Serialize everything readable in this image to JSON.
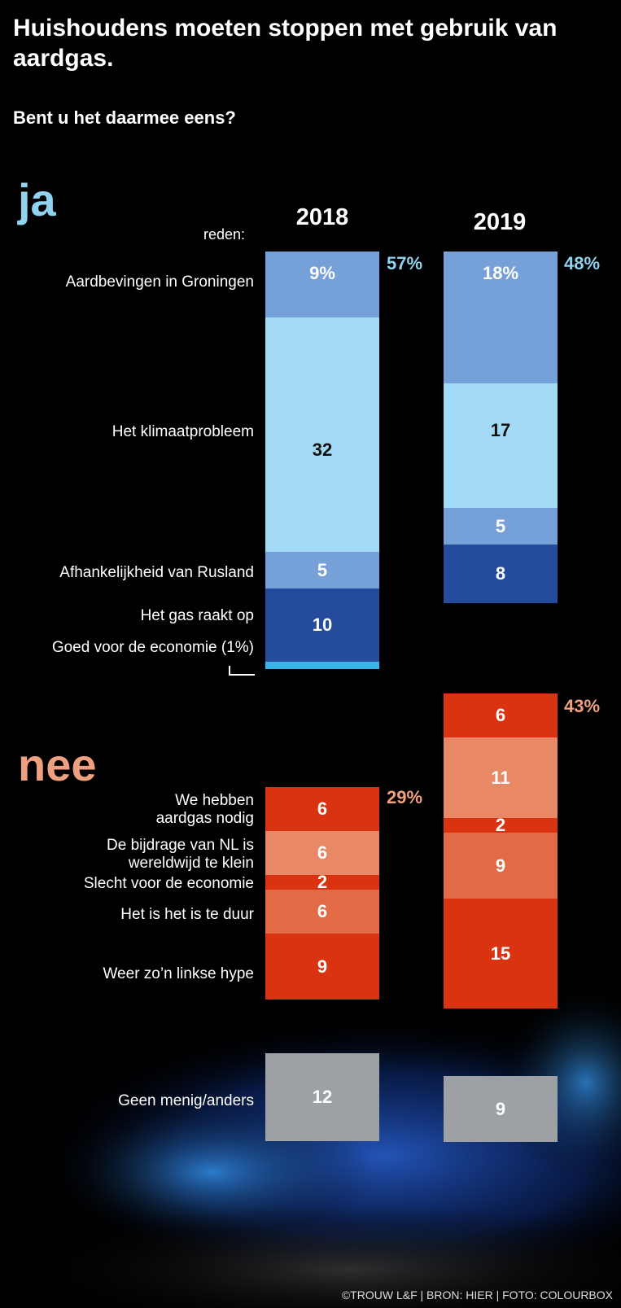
{
  "header": {
    "title": "Huishoudens moeten stoppen met gebruik van aardgas.",
    "subtitle": "Bent u het daarmee eens?"
  },
  "labels": {
    "ja": "ja",
    "nee": "nee",
    "reden": "reden:"
  },
  "credit": "©TROUW L&F | BRON: HIER | FOTO: COLOURBOX",
  "chart_data": {
    "type": "bar",
    "stacked": true,
    "categories": [
      "2018",
      "2019"
    ],
    "ja_totals": [
      "57%",
      "48%"
    ],
    "nee_totals": [
      "29%",
      "43%"
    ],
    "series": [
      {
        "name": "Aardbevingen in Groningen",
        "group": "ja",
        "values": [
          9,
          18
        ],
        "labels": [
          "9%",
          "18%"
        ],
        "color": "#76a1d8"
      },
      {
        "name": "Het klimaatprobleem",
        "group": "ja",
        "values": [
          32,
          17
        ],
        "labels": [
          "32",
          "17"
        ],
        "color": "#a2daf5"
      },
      {
        "name": "Afhankelijkheid van Rusland",
        "group": "ja",
        "values": [
          5,
          5
        ],
        "labels": [
          "5",
          "5"
        ],
        "color": "#76a1d8"
      },
      {
        "name": "Het gas raakt op",
        "group": "ja",
        "values": [
          10,
          8
        ],
        "labels": [
          "10",
          "8"
        ],
        "color": "#254b9c"
      },
      {
        "name": "Goed voor de economie (1%)",
        "group": "ja",
        "values": [
          1,
          0
        ],
        "labels": [
          "",
          ""
        ],
        "color": "#3ab4e6"
      },
      {
        "name": "We hebben aardgas nodig",
        "group": "nee",
        "values": [
          6,
          6
        ],
        "labels": [
          "6",
          "6"
        ],
        "color": "#d93312"
      },
      {
        "name": "De bijdrage van NL is wereldwijd te klein",
        "group": "nee",
        "values": [
          6,
          11
        ],
        "labels": [
          "6",
          "11"
        ],
        "color": "#e88865"
      },
      {
        "name": "Slecht voor de economie",
        "group": "nee",
        "values": [
          2,
          2
        ],
        "labels": [
          "2",
          "2"
        ],
        "color": "#d93312"
      },
      {
        "name": "Het is het is te duur",
        "group": "nee",
        "values": [
          6,
          9
        ],
        "labels": [
          "6",
          "9"
        ],
        "color": "#e26a45"
      },
      {
        "name": "Weer zo’n linkse hype",
        "group": "nee",
        "values": [
          9,
          15
        ],
        "labels": [
          "9",
          "15"
        ],
        "color": "#d93312"
      },
      {
        "name": "Geen menig/anders",
        "group": "other",
        "values": [
          12,
          9
        ],
        "labels": [
          "12",
          "9"
        ],
        "color": "#9da0a5"
      }
    ]
  }
}
